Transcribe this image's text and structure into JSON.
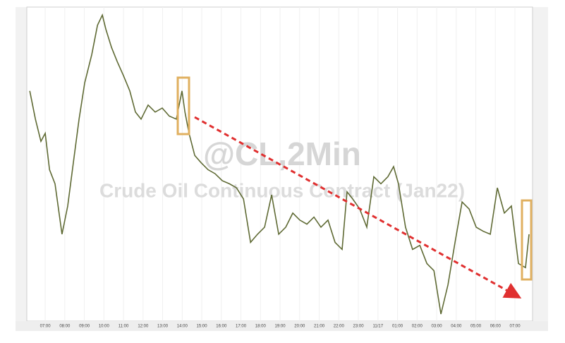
{
  "chart_data": {
    "type": "line",
    "watermark": "@CL,2Min",
    "subtitle": "Crude Oil Continuous Contract (Jan22)",
    "xlim": [
      -0.94,
      24.9
    ],
    "ylim": [
      77.93,
      81.04
    ],
    "xticks": [
      {
        "value": 0,
        "label": "07:00"
      },
      {
        "value": 1,
        "label": "08:00"
      },
      {
        "value": 2,
        "label": "09:00"
      },
      {
        "value": 3,
        "label": "10:00"
      },
      {
        "value": 4,
        "label": "11:00"
      },
      {
        "value": 5,
        "label": "12:00"
      },
      {
        "value": 6,
        "label": "13:00"
      },
      {
        "value": 7,
        "label": "14:00"
      },
      {
        "value": 8,
        "label": "15:00"
      },
      {
        "value": 9,
        "label": "16:00"
      },
      {
        "value": 10,
        "label": "17:00"
      },
      {
        "value": 11,
        "label": "18:00"
      },
      {
        "value": 12,
        "label": "19:00"
      },
      {
        "value": 13,
        "label": "20:00"
      },
      {
        "value": 14,
        "label": "21:00"
      },
      {
        "value": 15,
        "label": "22:00"
      },
      {
        "value": 16,
        "label": "23:00"
      },
      {
        "value": 17,
        "label": "11/17"
      },
      {
        "value": 18,
        "label": "01:00"
      },
      {
        "value": 19,
        "label": "02:00"
      },
      {
        "value": 20,
        "label": "03:00"
      },
      {
        "value": 21,
        "label": "04:00"
      },
      {
        "value": 22,
        "label": "05:00"
      },
      {
        "value": 23,
        "label": "06:00"
      },
      {
        "value": 24,
        "label": "07:00"
      }
    ],
    "series": [
      {
        "color": "#5f6a34",
        "x": [
          -0.79,
          -0.5,
          -0.22,
          0,
          0.22,
          0.5,
          0.86,
          1.15,
          1.44,
          1.73,
          2.02,
          2.38,
          2.67,
          2.92,
          3.1,
          3.39,
          3.68,
          4.0,
          4.32,
          4.61,
          4.9,
          5.26,
          5.62,
          5.98,
          6.34,
          6.7,
          6.99,
          7.14,
          7.35,
          7.64,
          7.96,
          8.32,
          8.68,
          9.05,
          9.41,
          9.77,
          10.13,
          10.49,
          10.85,
          11.21,
          11.57,
          11.93,
          12.29,
          12.65,
          13.01,
          13.37,
          13.73,
          14.09,
          14.45,
          14.81,
          15.17,
          15.42,
          15.71,
          16.07,
          16.43,
          16.79,
          17.15,
          17.51,
          17.8,
          18.05,
          18.41,
          18.77,
          19.14,
          19.5,
          19.86,
          20.22,
          20.58,
          20.94,
          21.3,
          21.66,
          22.02,
          22.38,
          22.74,
          23.1,
          23.46,
          23.82,
          24.18,
          24.54,
          24.72
        ],
        "values": [
          80.21,
          79.93,
          79.71,
          79.79,
          79.43,
          79.29,
          78.79,
          79.07,
          79.5,
          79.93,
          80.29,
          80.57,
          80.86,
          80.96,
          80.82,
          80.64,
          80.5,
          80.36,
          80.21,
          80.0,
          79.93,
          80.07,
          80.0,
          80.04,
          79.96,
          79.93,
          80.21,
          80.0,
          79.79,
          79.57,
          79.5,
          79.43,
          79.39,
          79.32,
          79.29,
          79.25,
          79.14,
          78.71,
          78.79,
          78.86,
          79.18,
          78.79,
          78.86,
          79.0,
          78.93,
          78.89,
          78.96,
          78.86,
          78.93,
          78.71,
          78.64,
          79.21,
          79.14,
          79.04,
          78.86,
          79.36,
          79.29,
          79.36,
          79.46,
          79.29,
          78.86,
          78.64,
          78.68,
          78.5,
          78.43,
          78.0,
          78.29,
          78.71,
          79.11,
          79.04,
          78.86,
          78.82,
          78.79,
          79.25,
          79.0,
          79.07,
          78.5,
          78.46,
          78.79
        ]
      }
    ]
  }
}
